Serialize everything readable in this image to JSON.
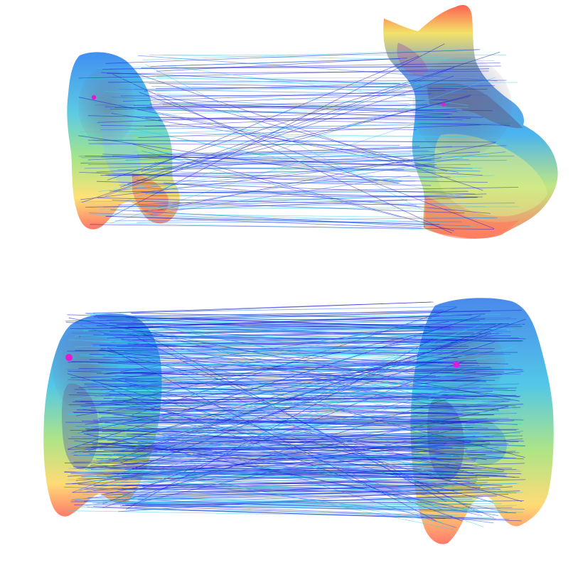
{
  "figure": {
    "panels": [
      {
        "id": "top",
        "left_shape": "partial-scan",
        "right_shape": "cat",
        "correspondence_lines": "sparse"
      },
      {
        "id": "bottom",
        "left_shape": "partial-scan",
        "right_shape": "partial-scan",
        "correspondence_lines": "dense"
      }
    ],
    "colors": {
      "background": "#ffffff",
      "line_dark": "#1a1ad6",
      "line_mid": "#2a6cf0",
      "line_light": "#35d0ee",
      "keypoint": "#e21ad2",
      "surface_low": "#3fa9f5",
      "surface_mid": "#8ce08a",
      "surface_high": "#ffe06a",
      "surface_peak": "#ff6a5a",
      "surface_shadow": "#6f6a8c"
    },
    "icons": [
      "keypoint-marker"
    ]
  }
}
